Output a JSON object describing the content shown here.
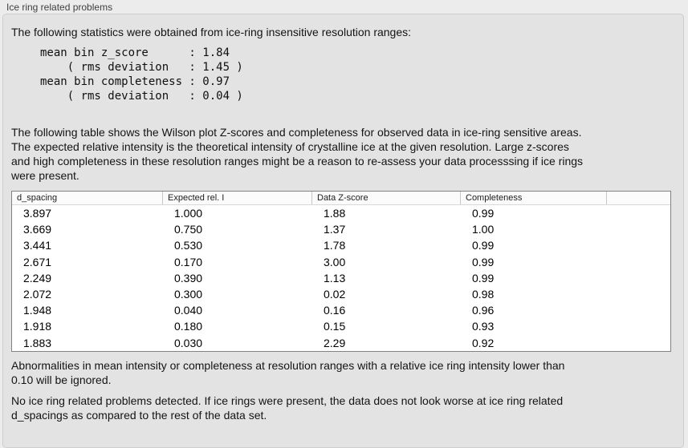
{
  "panel": {
    "title": "Ice ring related problems"
  },
  "intro": "The following statistics were obtained from ice-ring insensitive resolution ranges:",
  "stats": {
    "block": "mean bin z_score      : 1.84\n    ( rms deviation   : 1.45 )\nmean bin completeness : 0.97\n    ( rms deviation   : 0.04 )",
    "mean_bin_z_score": "1.84",
    "z_score_rms_deviation": "1.45",
    "mean_bin_completeness": "0.97",
    "completeness_rms_deviation": "0.04"
  },
  "table_description": "The following table shows the Wilson plot Z-scores and completeness for observed data in ice-ring sensitive areas.\nThe expected relative intensity is the theoretical intensity of crystalline ice at the given resolution. Large z-scores\nand high completeness in these resolution ranges might be a reason to re-assess your data processsing if ice rings\nwere present.",
  "table": {
    "columns": [
      "d_spacing",
      "Expected rel. I",
      "Data Z-score",
      "Completeness"
    ],
    "rows": [
      [
        "3.897",
        "1.000",
        "1.88",
        "0.99"
      ],
      [
        "3.669",
        "0.750",
        "1.37",
        "1.00"
      ],
      [
        "3.441",
        "0.530",
        "1.78",
        "0.99"
      ],
      [
        "2.671",
        "0.170",
        "3.00",
        "0.99"
      ],
      [
        "2.249",
        "0.390",
        "1.13",
        "0.99"
      ],
      [
        "2.072",
        "0.300",
        "0.02",
        "0.98"
      ],
      [
        "1.948",
        "0.040",
        "0.16",
        "0.96"
      ],
      [
        "1.918",
        "0.180",
        "0.15",
        "0.93"
      ],
      [
        "1.883",
        "0.030",
        "2.29",
        "0.92"
      ]
    ]
  },
  "ignore_note": "Abnormalities in mean intensity or completeness at resolution ranges with a relative ice ring intensity lower than\n0.10 will be ignored.",
  "conclusion": "No ice ring related problems detected. If ice rings were present, the data does not look worse at ice ring related\nd_spacings as compared to the rest of the data set."
}
